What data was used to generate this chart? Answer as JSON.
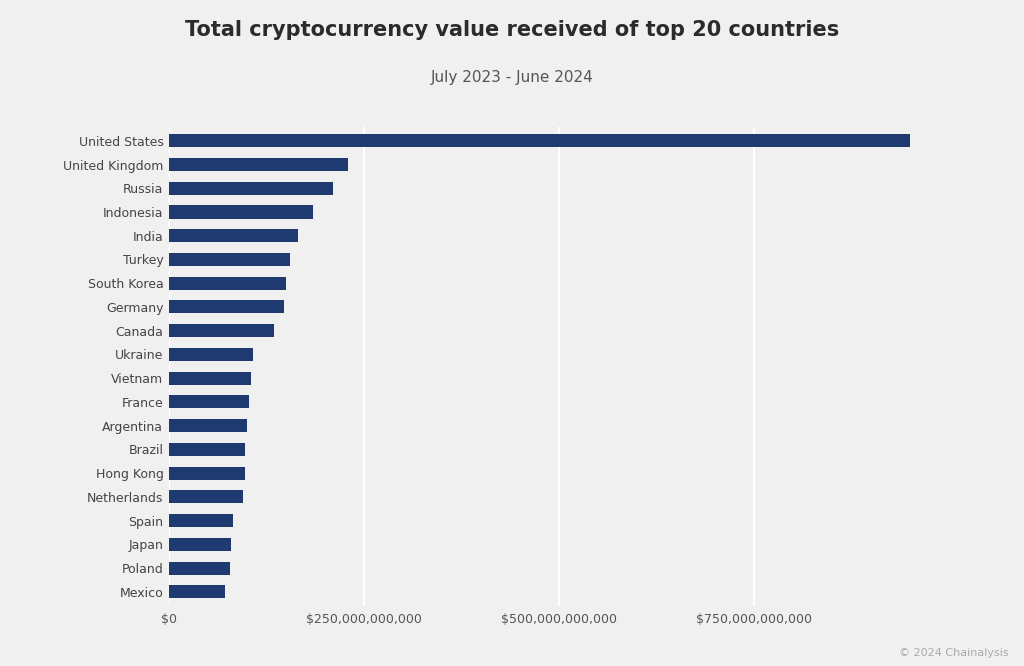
{
  "title": "Total cryptocurrency value received of top 20 countries",
  "subtitle": "July 2023 - June 2024",
  "copyright": "© 2024 Chainalysis",
  "bar_color": "#1e3a6e",
  "background_color": "#f0f0f0",
  "plot_bg_color": "#f0f0f0",
  "grid_color": "#ffffff",
  "xlim": [
    0,
    1050000000000
  ],
  "xticks": [
    0,
    250000000000,
    500000000000,
    750000000000
  ],
  "countries": [
    "United States",
    "United Kingdom",
    "Russia",
    "Indonesia",
    "India",
    "Turkey",
    "South Korea",
    "Germany",
    "Canada",
    "Ukraine",
    "Vietnam",
    "France",
    "Argentina",
    "Brazil",
    "Hong Kong",
    "Netherlands",
    "Spain",
    "Japan",
    "Poland",
    "Mexico"
  ],
  "values": [
    950000000000,
    230000000000,
    210000000000,
    185000000000,
    165000000000,
    155000000000,
    150000000000,
    148000000000,
    135000000000,
    108000000000,
    105000000000,
    103000000000,
    100000000000,
    98000000000,
    97000000000,
    95000000000,
    82000000000,
    80000000000,
    78000000000,
    72000000000
  ],
  "title_fontsize": 15,
  "subtitle_fontsize": 11,
  "tick_label_fontsize": 9,
  "copyright_fontsize": 8
}
